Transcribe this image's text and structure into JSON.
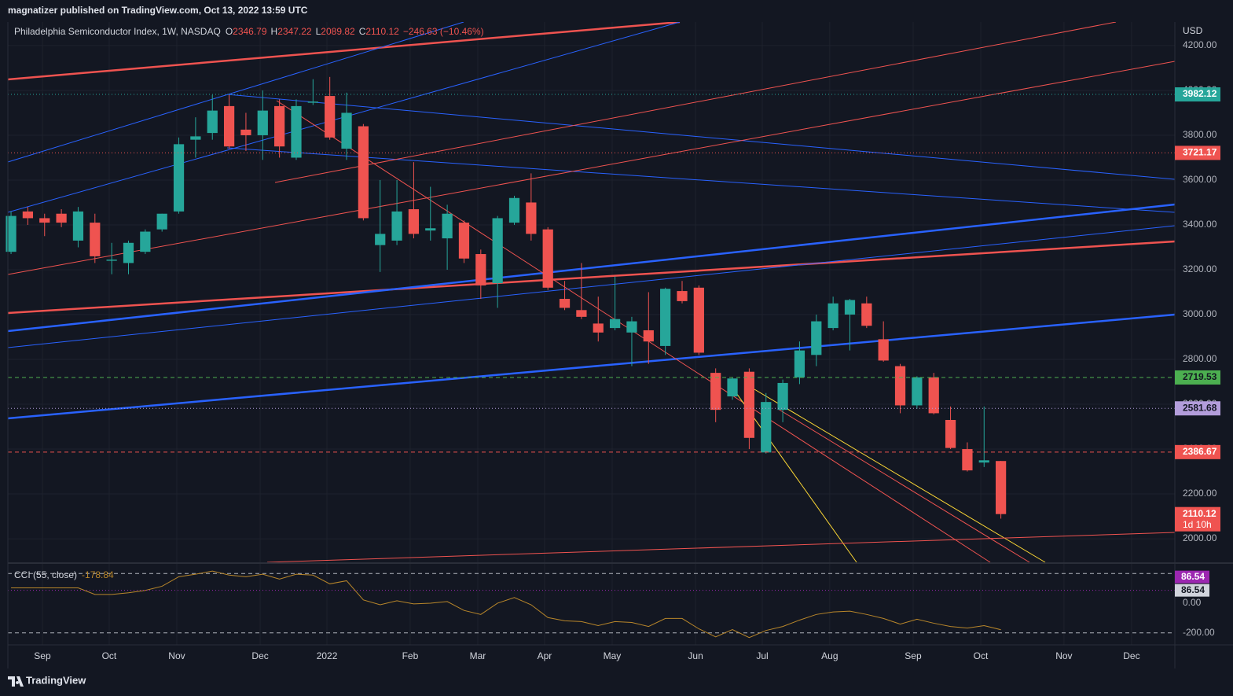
{
  "header": {
    "text": "magnatizer published on TradingView.com, Oct 13, 2022 13:59 UTC"
  },
  "footer": {
    "brand": "TradingView"
  },
  "chart_data": [
    {
      "type": "candlestick",
      "title": "Philadelphia Semiconductor Index, 1W, NASDAQ",
      "ohlc_labels": [
        "O",
        "H",
        "L",
        "C"
      ],
      "change": "−246.63 (−10.46%)",
      "currency": "USD",
      "countdown": "1d 10h",
      "up_color": "#26a69a",
      "down_color": "#ef5350",
      "x": [
        0,
        1,
        2,
        3,
        4,
        5,
        6,
        7,
        8,
        9,
        10,
        11,
        12,
        13,
        14,
        15,
        16,
        17,
        18,
        19,
        20,
        21,
        22,
        23,
        24,
        25,
        26,
        27,
        28,
        29,
        30,
        31,
        32,
        33,
        34,
        35,
        36,
        37,
        38,
        39,
        40,
        41,
        42,
        43,
        44,
        45,
        46,
        47,
        48,
        49,
        50,
        51,
        52,
        53,
        54,
        55,
        56,
        57,
        58,
        59
      ],
      "open": [
        3280,
        3460,
        3430,
        3450,
        3330,
        3410,
        3240,
        3230,
        3280,
        3380,
        3460,
        3780,
        3810,
        3930,
        3825,
        3800,
        3930,
        3700,
        3945,
        3975,
        3740,
        3840,
        3310,
        3330,
        3470,
        3375,
        3340,
        3410,
        3270,
        3140,
        3410,
        3500,
        3380,
        3070,
        3020,
        2960,
        2940,
        2920,
        2930,
        2860,
        3105,
        3120,
        2740,
        2635,
        2745,
        2385,
        2575,
        2720,
        2820,
        2940,
        3000,
        3050,
        2890,
        2770,
        2595,
        2720,
        2530,
        2400,
        2340,
        2346.79
      ],
      "high": [
        3460,
        3480,
        3450,
        3470,
        3480,
        3450,
        3320,
        3330,
        3380,
        3450,
        3790,
        3880,
        3980,
        3980,
        3900,
        4000,
        3960,
        3960,
        4050,
        4060,
        3990,
        3850,
        3600,
        3600,
        3680,
        3570,
        3490,
        3420,
        3290,
        3440,
        3530,
        3630,
        3390,
        3150,
        3230,
        3080,
        3170,
        2990,
        3100,
        3120,
        3150,
        3130,
        2760,
        2720,
        2760,
        2650,
        2710,
        2880,
        3000,
        3080,
        3070,
        3080,
        2970,
        2780,
        2725,
        2740,
        2590,
        2430,
        2590,
        2347.22
      ],
      "low": [
        3270,
        3400,
        3350,
        3390,
        3300,
        3230,
        3180,
        3180,
        3270,
        3370,
        3450,
        3700,
        3780,
        3740,
        3730,
        3690,
        3700,
        3690,
        3935,
        3780,
        3690,
        3420,
        3190,
        3310,
        3340,
        3330,
        3200,
        3230,
        3070,
        3030,
        3400,
        3330,
        3110,
        3020,
        2980,
        2880,
        2930,
        2770,
        2780,
        2820,
        3050,
        2820,
        2520,
        2620,
        2400,
        2380,
        2520,
        2690,
        2770,
        2930,
        2840,
        2940,
        2790,
        2560,
        2580,
        2555,
        2400,
        2300,
        2320,
        2089.82
      ],
      "close": [
        3440,
        3430,
        3410,
        3410,
        3460,
        3260,
        3245,
        3320,
        3370,
        3450,
        3760,
        3795,
        3910,
        3750,
        3800,
        3910,
        3750,
        3930,
        3950,
        3790,
        3900,
        3430,
        3360,
        3460,
        3360,
        3385,
        3450,
        3250,
        3130,
        3430,
        3520,
        3360,
        3120,
        3030,
        2990,
        2920,
        2980,
        2970,
        2880,
        3115,
        3060,
        2830,
        2575,
        2715,
        2450,
        2610,
        2695,
        2840,
        2970,
        3050,
        3065,
        2950,
        2795,
        2595,
        2720,
        2560,
        2405,
        2305,
        2350,
        2110.12
      ],
      "xlim": [
        -0.19,
        69.37
      ],
      "xticks": [
        {
          "value": 1.87,
          "label": "Sep"
        },
        {
          "value": 5.85,
          "label": "Oct"
        },
        {
          "value": 9.88,
          "label": "Nov"
        },
        {
          "value": 14.85,
          "label": "Dec"
        },
        {
          "value": 18.83,
          "label": "2022"
        },
        {
          "value": 23.79,
          "label": "Feb"
        },
        {
          "value": 27.82,
          "label": "Mar"
        },
        {
          "value": 31.8,
          "label": "Apr"
        },
        {
          "value": 35.83,
          "label": "May"
        },
        {
          "value": 40.8,
          "label": "Jun"
        },
        {
          "value": 44.78,
          "label": "Jul"
        },
        {
          "value": 48.8,
          "label": "Aug"
        },
        {
          "value": 53.77,
          "label": "Sep"
        },
        {
          "value": 57.8,
          "label": "Oct"
        },
        {
          "value": 62.76,
          "label": "Nov"
        },
        {
          "value": 66.79,
          "label": "Dec"
        }
      ],
      "ylim": [
        1895,
        4305
      ],
      "yticks": [
        {
          "value": 2000,
          "label": "2000.00"
        },
        {
          "value": 2200,
          "label": "2200.00"
        },
        {
          "value": 2400,
          "label": "2400.00"
        },
        {
          "value": 2600,
          "label": "2600.00"
        },
        {
          "value": 2800,
          "label": "2800.00"
        },
        {
          "value": 3000,
          "label": "3000.00"
        },
        {
          "value": 3200,
          "label": "3200.00"
        },
        {
          "value": 3400,
          "label": "3400.00"
        },
        {
          "value": 3600,
          "label": "3600.00"
        },
        {
          "value": 3800,
          "label": "3800.00"
        },
        {
          "value": 4000,
          "label": "4000.00"
        },
        {
          "value": 4200,
          "label": "4200.00"
        }
      ],
      "grid": true,
      "levels": [
        {
          "value": 3982.12,
          "color": "#26a69a",
          "text_color": "#ffffff",
          "style": "dotted"
        },
        {
          "value": 3721.17,
          "color": "#ef5350",
          "text_color": "#ffffff",
          "style": "dotted"
        },
        {
          "value": 2719.53,
          "color": "#4caf50",
          "text_color": "#131722",
          "style": "dashed"
        },
        {
          "value": 2581.68,
          "color": "#b39ddb",
          "text_color": "#131722",
          "style": "dotted"
        },
        {
          "value": 2386.67,
          "color": "#ef5350",
          "text_color": "#ffffff",
          "style": "dashed"
        }
      ]
    },
    {
      "type": "line",
      "title": "CCI (55, close)",
      "color": "#b8862a",
      "x": [
        0,
        1,
        2,
        3,
        4,
        5,
        6,
        7,
        8,
        9,
        10,
        11,
        12,
        13,
        14,
        15,
        16,
        17,
        18,
        19,
        20,
        21,
        22,
        23,
        24,
        25,
        26,
        27,
        28,
        29,
        30,
        31,
        32,
        33,
        34,
        35,
        36,
        37,
        38,
        39,
        40,
        41,
        42,
        43,
        44,
        45,
        46,
        47,
        48,
        49,
        50,
        51,
        52,
        53,
        54,
        55,
        56,
        57,
        58,
        59
      ],
      "values": [
        103,
        103,
        103,
        103,
        103,
        59,
        59,
        70,
        86,
        114,
        178,
        195,
        216,
        189,
        178,
        195,
        162,
        195,
        189,
        130,
        151,
        22,
        -11,
        16,
        -5,
        0,
        11,
        -49,
        -76,
        0,
        38,
        -11,
        -97,
        -119,
        -124,
        -151,
        -124,
        -130,
        -157,
        -103,
        -103,
        -173,
        -227,
        -178,
        -232,
        -184,
        -157,
        -114,
        -76,
        -59,
        -54,
        -76,
        -103,
        -141,
        -108,
        -135,
        -157,
        -168,
        -151,
        -178.84
      ],
      "xlim": [
        -0.19,
        69.37
      ],
      "ylim": [
        -281,
        270
      ],
      "yticks": [
        {
          "value": 0,
          "label": "0.00"
        },
        {
          "value": -200,
          "label": "-200.00"
        }
      ],
      "bands": [
        200,
        -200
      ],
      "markers": [
        {
          "value": 86.54,
          "color": "#9c27b0",
          "text_color": "#ffffff"
        },
        {
          "value": 86.54,
          "color": "#d1d4dc",
          "text_color": "#131722"
        }
      ]
    }
  ]
}
